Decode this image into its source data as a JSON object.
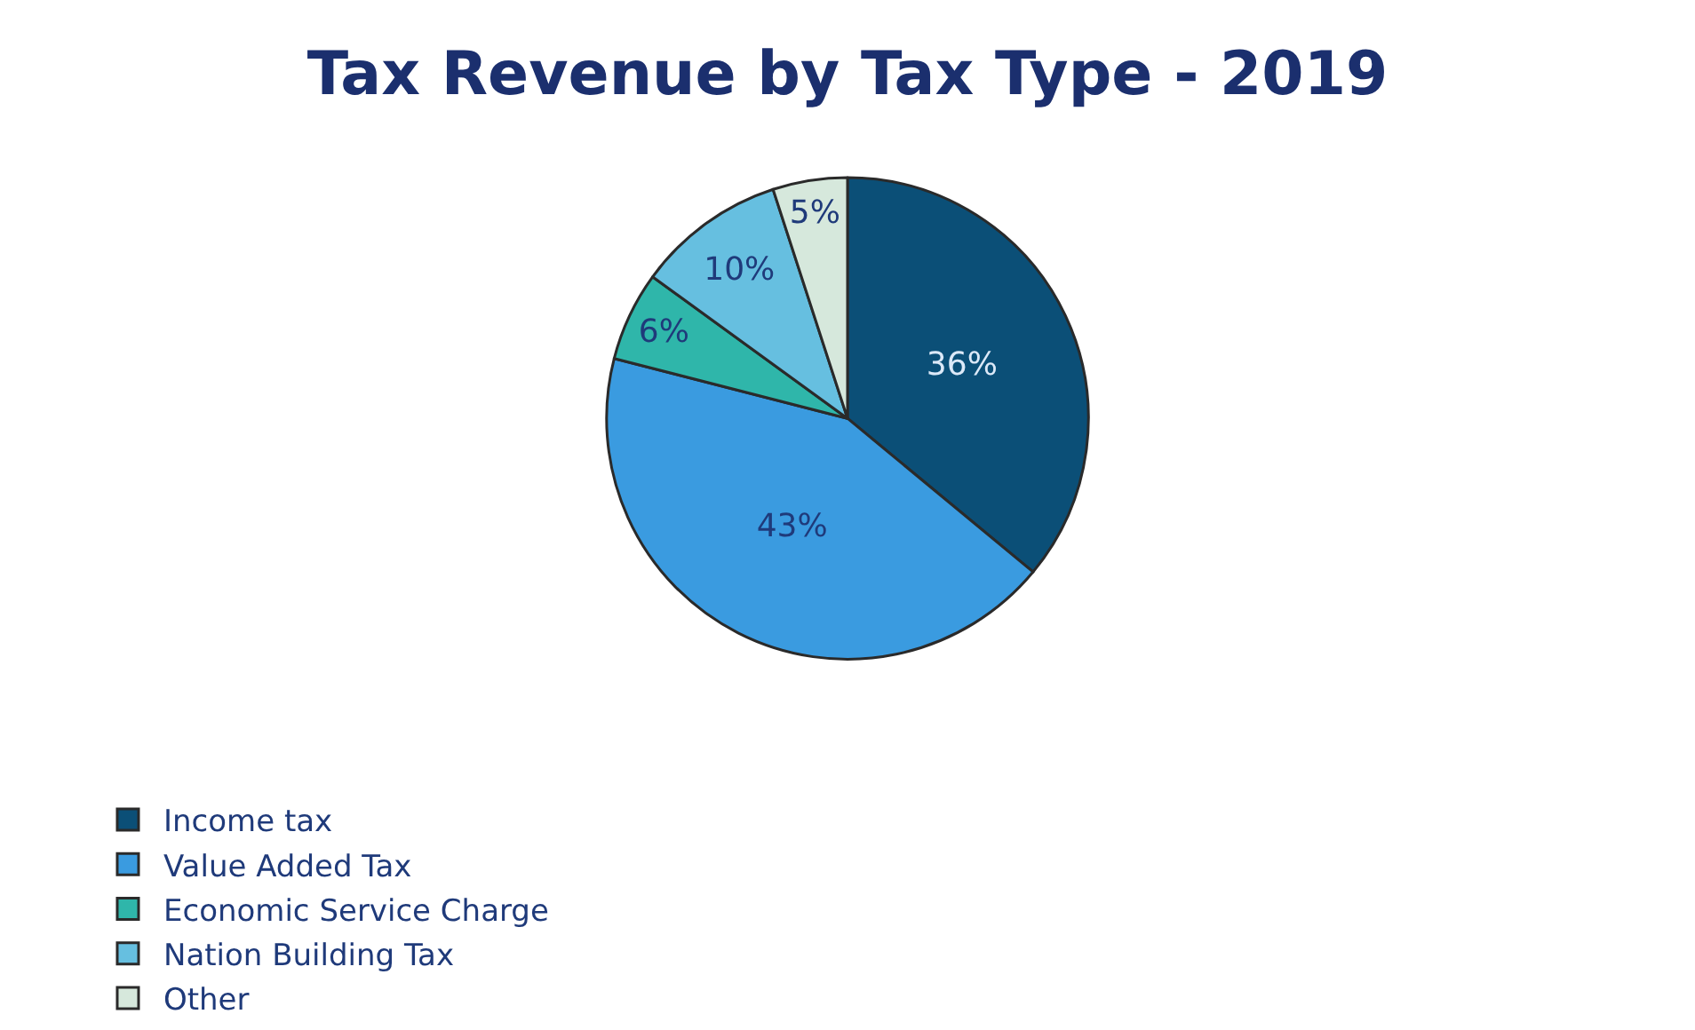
{
  "chart_data": {
    "type": "pie",
    "title": "Tax Revenue by Tax Type - 2019",
    "categories": [
      "Income tax",
      "Value Added Tax",
      "Economic Service Charge",
      "Nation Building Tax",
      "Other"
    ],
    "values": [
      36,
      43,
      6,
      10,
      5
    ],
    "value_labels": [
      "36%",
      "43%",
      "6%",
      "10%",
      "5%"
    ],
    "colors": [
      "#0b4f77",
      "#3a9be0",
      "#2fb6aa",
      "#66bfe0",
      "#d6e8dc"
    ],
    "legend": "bottom"
  }
}
